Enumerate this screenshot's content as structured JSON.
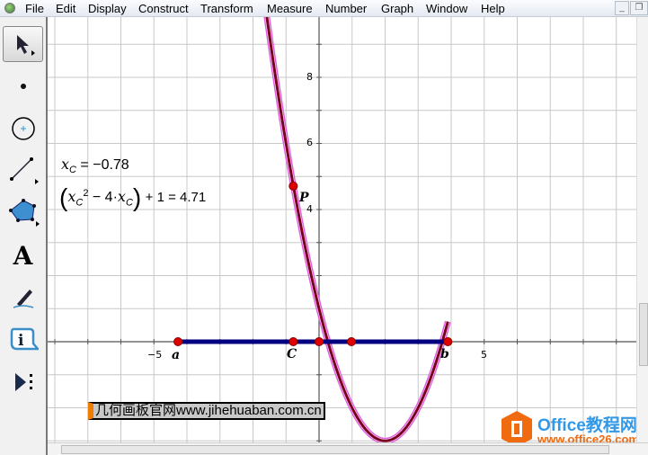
{
  "menubar": {
    "items": [
      "File",
      "Edit",
      "Display",
      "Construct",
      "Transform",
      "Measure",
      "Number",
      "Graph",
      "Window",
      "Help"
    ]
  },
  "window_controls": [
    "minimize",
    "restore",
    "close"
  ],
  "toolbox": {
    "tools": [
      "arrow-tool",
      "point-tool",
      "compass-tool",
      "straightedge-tool",
      "polygon-tool",
      "text-tool",
      "marker-tool",
      "information-tool",
      "custom-tools"
    ]
  },
  "graph": {
    "function": "x^2 - 4x + 1",
    "domain": [
      -4.27,
      3.9
    ],
    "x_tick_labels": [
      {
        "value": -5,
        "text": "−5"
      },
      {
        "value": 5,
        "text": "5"
      }
    ],
    "y_tick_labels": [
      {
        "value": 4,
        "text": "4"
      },
      {
        "value": 6,
        "text": "6"
      },
      {
        "value": 8,
        "text": "8"
      }
    ],
    "segment": {
      "from": -4.27,
      "to": 3.9
    },
    "points": [
      {
        "label": "a",
        "x": -4.27,
        "y": 0
      },
      {
        "label": "C",
        "x": -0.78,
        "y": 0
      },
      {
        "label": "",
        "x": 0,
        "y": 0
      },
      {
        "label": "",
        "x": 0.98,
        "y": 0
      },
      {
        "label": "b",
        "x": 3.9,
        "y": 0
      },
      {
        "label": "P",
        "x": -0.78,
        "y": 4.71
      }
    ],
    "colors": {
      "curve": "#7a0020",
      "curve_highlight": "#e060e0",
      "segment": "#000080",
      "point": "#e00000",
      "grid": "#c8c8c8"
    }
  },
  "measurements": {
    "xc": {
      "var": "x",
      "sub": "C",
      "rest": " = −0.78"
    },
    "expr": {
      "rest": "+ 1 = 4.71",
      "minus4": "− 4·",
      "sup": "2"
    }
  },
  "watermarks": {
    "jihe": "几何画板官网www.jihehuaban.com.cn",
    "office_title": "Office教程网",
    "office_url": "www.office26.com"
  }
}
